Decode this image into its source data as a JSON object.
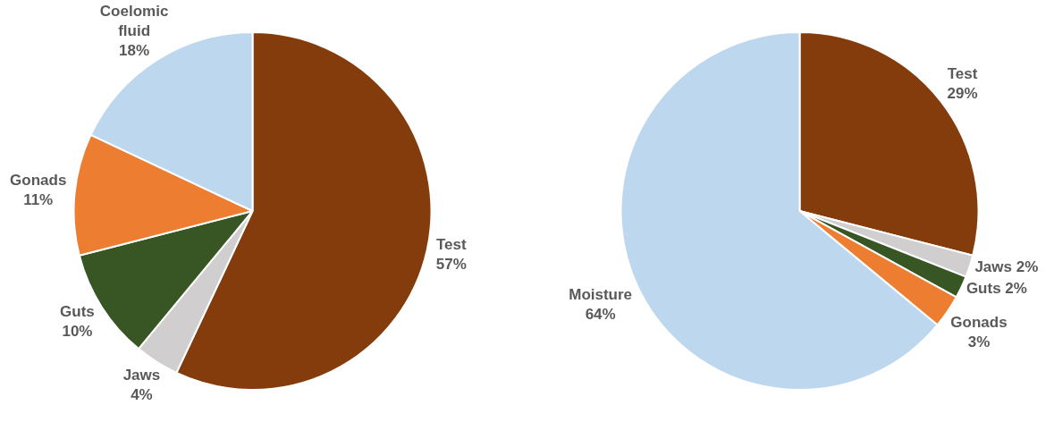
{
  "chart_data": [
    {
      "type": "pie",
      "categories": [
        "Test",
        "Jaws",
        "Guts",
        "Gonads",
        "Coelomic fluid"
      ],
      "values": [
        57,
        4,
        10,
        11,
        18
      ],
      "colors": [
        "#843c0c",
        "#d0cece",
        "#375623",
        "#ed7d31",
        "#bdd7ee"
      ],
      "value_labels": [
        "57%",
        "4%",
        "10%",
        "11%",
        "18%"
      ],
      "legend": false
    },
    {
      "type": "pie",
      "categories": [
        "Test",
        "Jaws",
        "Guts",
        "Gonads",
        "Moisture"
      ],
      "values": [
        29,
        2,
        2,
        3,
        64
      ],
      "colors": [
        "#843c0c",
        "#d0cece",
        "#375623",
        "#ed7d31",
        "#bdd7ee"
      ],
      "value_labels": [
        "29%",
        "2%",
        "2%",
        "3%",
        "64%"
      ],
      "legend": false
    }
  ]
}
